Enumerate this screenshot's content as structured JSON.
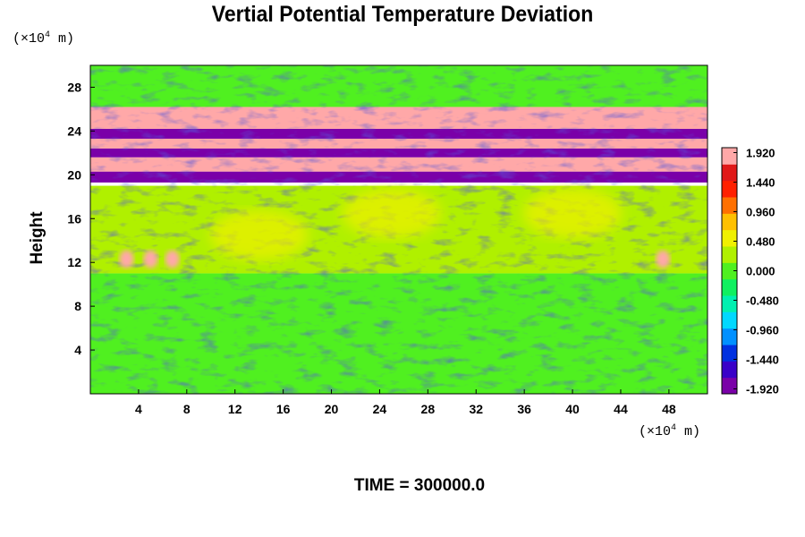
{
  "figure": {
    "title": "Vertial Potential Temperature Deviation",
    "ylabel": "Height",
    "yunit": {
      "prefix": "(×10",
      "exp": "4",
      "suffix": " m)"
    },
    "xunit": {
      "prefix": "(×10",
      "exp": "4",
      "suffix": " m)"
    },
    "time_label": "TIME = 300000.0"
  },
  "colors": {
    "palette": [
      "#7a00a8",
      "#3a00c8",
      "#0030e0",
      "#0090ff",
      "#00d8ff",
      "#00f0b0",
      "#10f060",
      "#50f020",
      "#b0f000",
      "#f0f000",
      "#ffc000",
      "#ff7000",
      "#ff2000",
      "#e01818",
      "#ffa8a8"
    ]
  },
  "chart_data": {
    "type": "heatmap",
    "title": "Vertial Potential Temperature Deviation",
    "xlabel": "",
    "ylabel": "Height",
    "x_unit": "×10^4 m",
    "y_unit": "×10^4 m",
    "xlim": [
      0,
      51.2
    ],
    "ylim": [
      0,
      30
    ],
    "x_ticks": [
      4,
      8,
      12,
      16,
      20,
      24,
      28,
      32,
      36,
      40,
      44,
      48
    ],
    "y_ticks": [
      4,
      8,
      12,
      16,
      20,
      24,
      28
    ],
    "colorbar": {
      "range": [
        -2.0,
        2.0
      ],
      "tick_labels": [
        "1.920",
        "1.440",
        "0.960",
        "0.480",
        "0.000",
        "-0.480",
        "-0.960",
        "-1.440",
        "-1.920"
      ],
      "tick_values": [
        1.92,
        1.44,
        0.96,
        0.48,
        0.0,
        -0.48,
        -0.96,
        -1.44,
        -1.92
      ]
    },
    "approx_field": {
      "description_by_height": [
        {
          "y_range": [
            0,
            11
          ],
          "value": 0.1
        },
        {
          "y_range": [
            11,
            19
          ],
          "value": 0.25
        },
        {
          "y_range": [
            19.3,
            20.3
          ],
          "value": -1.9
        },
        {
          "y_range": [
            20.3,
            21.6
          ],
          "value": 1.9
        },
        {
          "y_range": [
            21.6,
            22.4
          ],
          "value": -1.9
        },
        {
          "y_range": [
            22.4,
            23.3
          ],
          "value": 1.9
        },
        {
          "y_range": [
            23.3,
            24.2
          ],
          "value": -1.9
        },
        {
          "y_range": [
            24.2,
            26.2
          ],
          "value": 1.9
        },
        {
          "y_range": [
            26.2,
            30
          ],
          "value": 0.0
        }
      ],
      "warm_blobs": [
        {
          "x": 14,
          "y": 14.5,
          "value": 0.6
        },
        {
          "x": 25,
          "y": 16.5,
          "value": 0.5
        },
        {
          "x": 40,
          "y": 16.5,
          "value": 0.5
        },
        {
          "x": 3,
          "y": 12.3,
          "value": 1.9
        },
        {
          "x": 5,
          "y": 12.3,
          "value": 1.9
        },
        {
          "x": 6.8,
          "y": 12.3,
          "value": 1.9
        },
        {
          "x": 47.5,
          "y": 12.3,
          "value": 1.9
        }
      ]
    }
  }
}
